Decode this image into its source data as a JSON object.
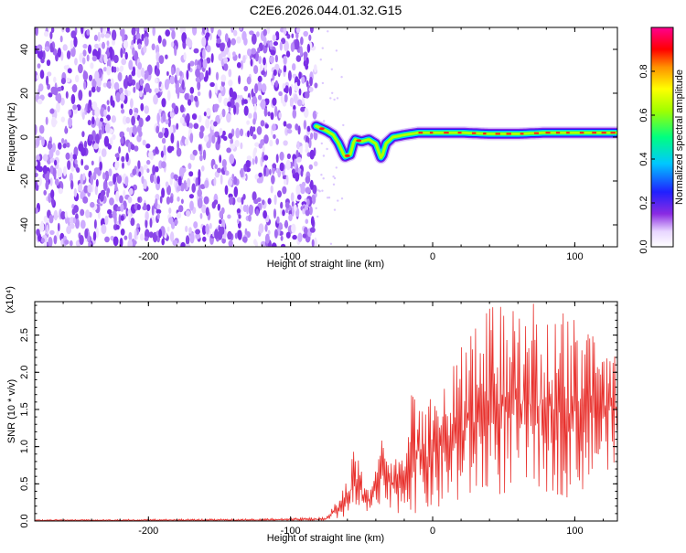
{
  "title": "C2E6.2026.044.01.32.G15",
  "chart_data": [
    {
      "type": "heatmap",
      "xlabel": "Height of straight line (km)",
      "ylabel": "Frequency (Hz)",
      "xlim": [
        -280,
        130
      ],
      "ylim": [
        -50,
        50
      ],
      "xticks": [
        -200,
        -100,
        0,
        100
      ],
      "yticks": [
        -40,
        -20,
        0,
        20,
        40
      ],
      "colorbar": {
        "label": "Normalized spectral amplitude",
        "range": [
          0,
          1
        ],
        "ticks": [
          "0.0",
          "0.2",
          "0.4",
          "0.6",
          "0.8"
        ]
      },
      "noise_region_x": [
        -280,
        -82
      ],
      "ridge": [
        {
          "x": -82,
          "y": 5
        },
        {
          "x": -75,
          "y": 3
        },
        {
          "x": -70,
          "y": 1
        },
        {
          "x": -66,
          "y": -3
        },
        {
          "x": -62,
          "y": -9
        },
        {
          "x": -58,
          "y": -8
        },
        {
          "x": -55,
          "y": -1
        },
        {
          "x": -50,
          "y": -2
        },
        {
          "x": -45,
          "y": -1
        },
        {
          "x": -40,
          "y": -3
        },
        {
          "x": -36,
          "y": -10
        },
        {
          "x": -33,
          "y": -3
        },
        {
          "x": -28,
          "y": 0
        },
        {
          "x": -20,
          "y": 1
        },
        {
          "x": -10,
          "y": 2
        },
        {
          "x": 0,
          "y": 2
        },
        {
          "x": 20,
          "y": 2
        },
        {
          "x": 40,
          "y": 1.5
        },
        {
          "x": 60,
          "y": 1.5
        },
        {
          "x": 80,
          "y": 2
        },
        {
          "x": 100,
          "y": 2
        },
        {
          "x": 130,
          "y": 2
        }
      ]
    },
    {
      "type": "line",
      "xlabel": "Height of straight line (km)",
      "ylabel": "SNR (10 * v/v)",
      "multiplier": "(x10⁴)",
      "xlim": [
        -280,
        130
      ],
      "ylim": [
        0,
        2.95
      ],
      "xticks": [
        -200,
        -100,
        0,
        100
      ],
      "yticks": [
        "0.0",
        "0.5",
        "1.0",
        "1.5",
        "2.0",
        "2.5"
      ],
      "color": "#e8312d",
      "envelope": [
        {
          "x": -280,
          "lo": 0.0,
          "hi": 0.02
        },
        {
          "x": -120,
          "lo": 0.0,
          "hi": 0.03
        },
        {
          "x": -75,
          "lo": 0.0,
          "hi": 0.05
        },
        {
          "x": -65,
          "lo": 0.02,
          "hi": 0.38
        },
        {
          "x": -55,
          "lo": 0.08,
          "hi": 1.0
        },
        {
          "x": -45,
          "lo": 0.1,
          "hi": 0.45
        },
        {
          "x": -35,
          "lo": 0.1,
          "hi": 1.15
        },
        {
          "x": -25,
          "lo": 0.1,
          "hi": 0.8
        },
        {
          "x": -15,
          "lo": 0.1,
          "hi": 1.8
        },
        {
          "x": 0,
          "lo": 0.1,
          "hi": 1.75
        },
        {
          "x": 20,
          "lo": 0.2,
          "hi": 2.4
        },
        {
          "x": 40,
          "lo": 0.3,
          "hi": 2.9
        },
        {
          "x": 70,
          "lo": 0.4,
          "hi": 2.95
        },
        {
          "x": 100,
          "lo": 0.3,
          "hi": 2.75
        },
        {
          "x": 130,
          "lo": 0.8,
          "hi": 2.3
        }
      ]
    }
  ]
}
